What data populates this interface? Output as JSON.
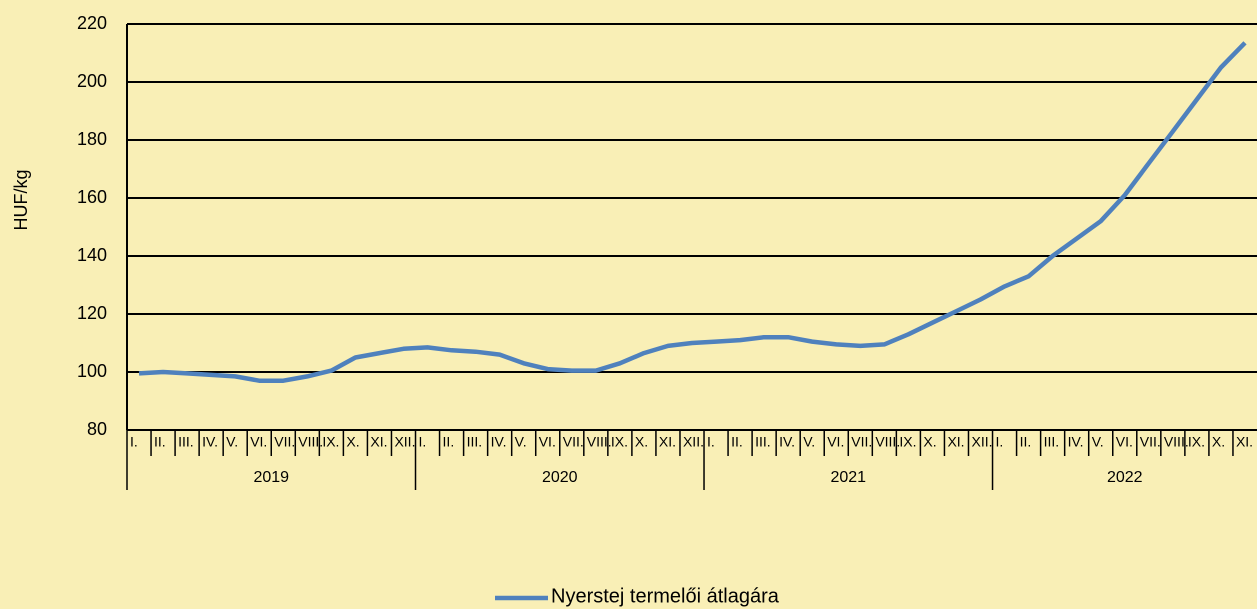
{
  "chart_data": {
    "type": "line",
    "y_label": "HUF/kg",
    "categories": [
      "I.",
      "II.",
      "III.",
      "IV.",
      "V.",
      "VI.",
      "VII.",
      "VIII.",
      "IX.",
      "X.",
      "XI.",
      "XII.",
      "I.",
      "II.",
      "III.",
      "IV.",
      "V.",
      "VI.",
      "VII.",
      "VIII.",
      "IX.",
      "X.",
      "XI.",
      "XII.",
      "I.",
      "II.",
      "III.",
      "IV.",
      "V.",
      "VI.",
      "VII.",
      "VIII.",
      "IX.",
      "X.",
      "XI.",
      "XII.",
      "I.",
      "II.",
      "III.",
      "IV.",
      "V.",
      "VI.",
      "VII.",
      "VIII.",
      "IX.",
      "X.",
      "XI."
    ],
    "years": [
      "2019",
      "2020",
      "2021",
      "2022"
    ],
    "series": [
      {
        "name": "Nyerstej termelői átlagára",
        "color": "#4f81bd",
        "values": [
          99.5,
          100,
          99.5,
          99,
          98.5,
          97,
          97,
          98.5,
          100.5,
          105,
          106.5,
          108,
          108.5,
          107.5,
          107,
          106,
          103,
          101,
          100.5,
          100.5,
          103,
          106.5,
          109,
          110,
          110.5,
          111,
          112,
          112,
          110.5,
          109.5,
          109,
          109.5,
          113,
          117,
          121,
          125,
          129.5,
          133,
          140,
          146,
          152,
          161,
          172,
          183,
          194,
          205,
          213.5
        ]
      }
    ],
    "ylim": [
      80,
      220
    ],
    "yticks": [
      80,
      100,
      120,
      140,
      160,
      180,
      200,
      220
    ],
    "grid": true,
    "legend": "bottom"
  }
}
